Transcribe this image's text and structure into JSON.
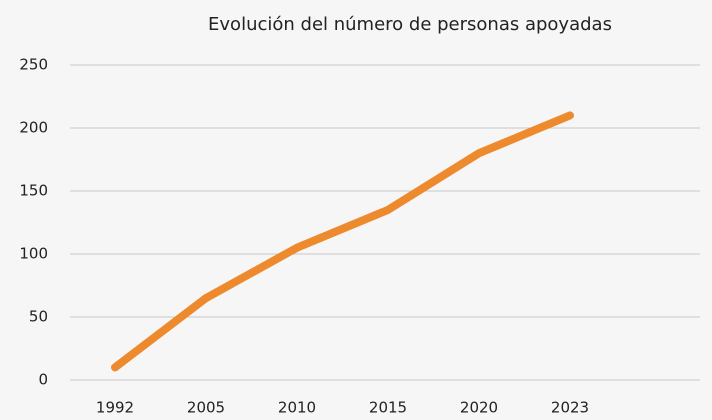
{
  "chart_data": {
    "type": "line",
    "title": "Evolución del número de personas apoyadas",
    "categories": [
      "1992",
      "2005",
      "2010",
      "2015",
      "2020",
      "2023"
    ],
    "series": [
      {
        "name": "Personas apoyadas",
        "color": "#ee8a2e",
        "values": [
          10,
          65,
          105,
          135,
          180,
          210
        ]
      }
    ],
    "ylim": [
      0,
      250
    ],
    "yticks": [
      0,
      50,
      100,
      150,
      200,
      250
    ],
    "grid": true
  }
}
